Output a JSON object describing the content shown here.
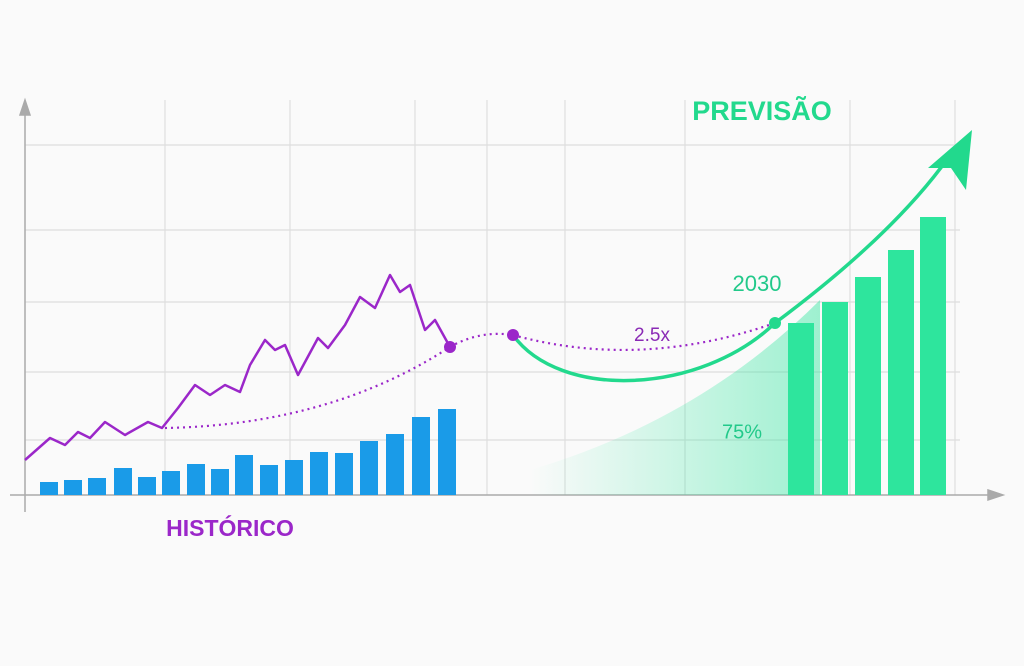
{
  "labels": {
    "forecast": "PREVISÃO",
    "history": "HISTÓRICO",
    "year": "2030",
    "multiplier": "2.5x",
    "share": "75%"
  }
}
